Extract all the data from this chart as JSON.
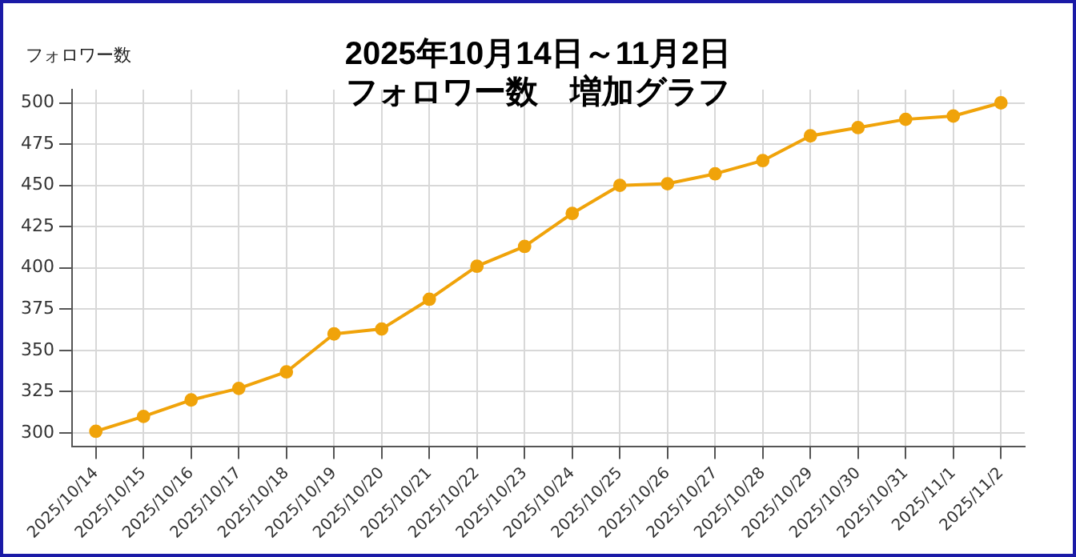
{
  "chart_data": {
    "type": "line",
    "title": "2025年10月14日～11月2日",
    "subtitle": "フォロワー数　増加グラフ",
    "ylabel": "フォロワー数",
    "categories": [
      "2025/10/14",
      "2025/10/15",
      "2025/10/16",
      "2025/10/17",
      "2025/10/18",
      "2025/10/19",
      "2025/10/20",
      "2025/10/21",
      "2025/10/22",
      "2025/10/23",
      "2025/10/24",
      "2025/10/25",
      "2025/10/26",
      "2025/10/27",
      "2025/10/28",
      "2025/10/29",
      "2025/10/30",
      "2025/10/31",
      "2025/11/1",
      "2025/11/2"
    ],
    "series": [
      {
        "color": "#f0a30a",
        "values": [
          301,
          310,
          320,
          327,
          337,
          360,
          363,
          381,
          401,
          413,
          433,
          450,
          451,
          457,
          465,
          480,
          485,
          490,
          492,
          500
        ]
      }
    ],
    "ylim": [
      292,
      508
    ],
    "yticks": [
      300,
      325,
      350,
      375,
      400,
      425,
      450,
      475,
      500
    ],
    "grid": true,
    "legend": false,
    "marker": "circle",
    "line_style": "solid"
  }
}
